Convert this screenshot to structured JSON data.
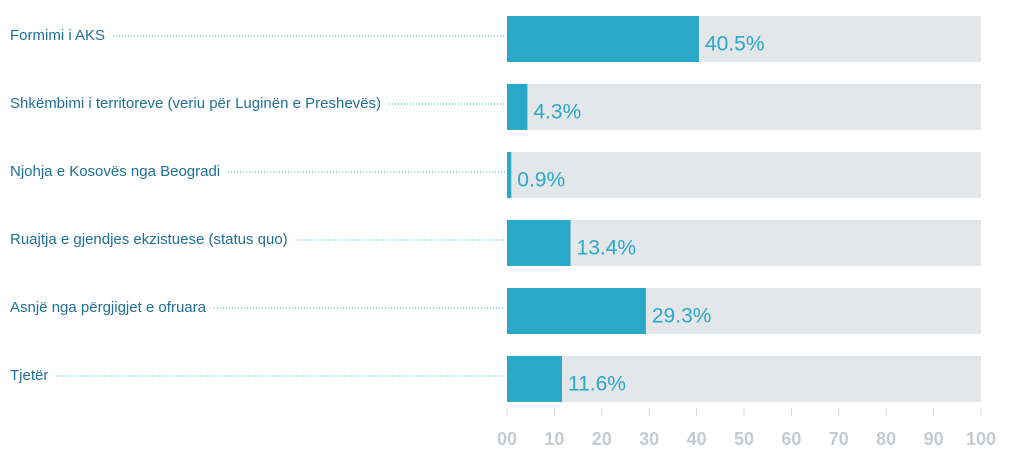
{
  "chart_data": {
    "type": "bar",
    "orientation": "horizontal",
    "categories": [
      "Formimi i AKS",
      "Shkëmbimi i territoreve (veriu për Luginën e Preshevës)",
      "Njohja e Kosovës nga Beogradi",
      "Ruajtja e gjendjes ekzistuese (status quo)",
      "Asnjë nga përgjigjet e ofruara",
      "Tjetër"
    ],
    "values": [
      40.5,
      4.3,
      0.9,
      13.4,
      29.3,
      11.6
    ],
    "value_labels": [
      "40.5%",
      "4.3%",
      "0.9%",
      "13.4%",
      "29.3%",
      "11.6%"
    ],
    "color": "#2aa8c8",
    "track_color": "#e4e7e9",
    "xlim": [
      0,
      100
    ],
    "xticks": [
      {
        "value": 0,
        "label": "00"
      },
      10,
      20,
      30,
      40,
      50,
      60,
      70,
      80,
      90,
      100
    ]
  }
}
